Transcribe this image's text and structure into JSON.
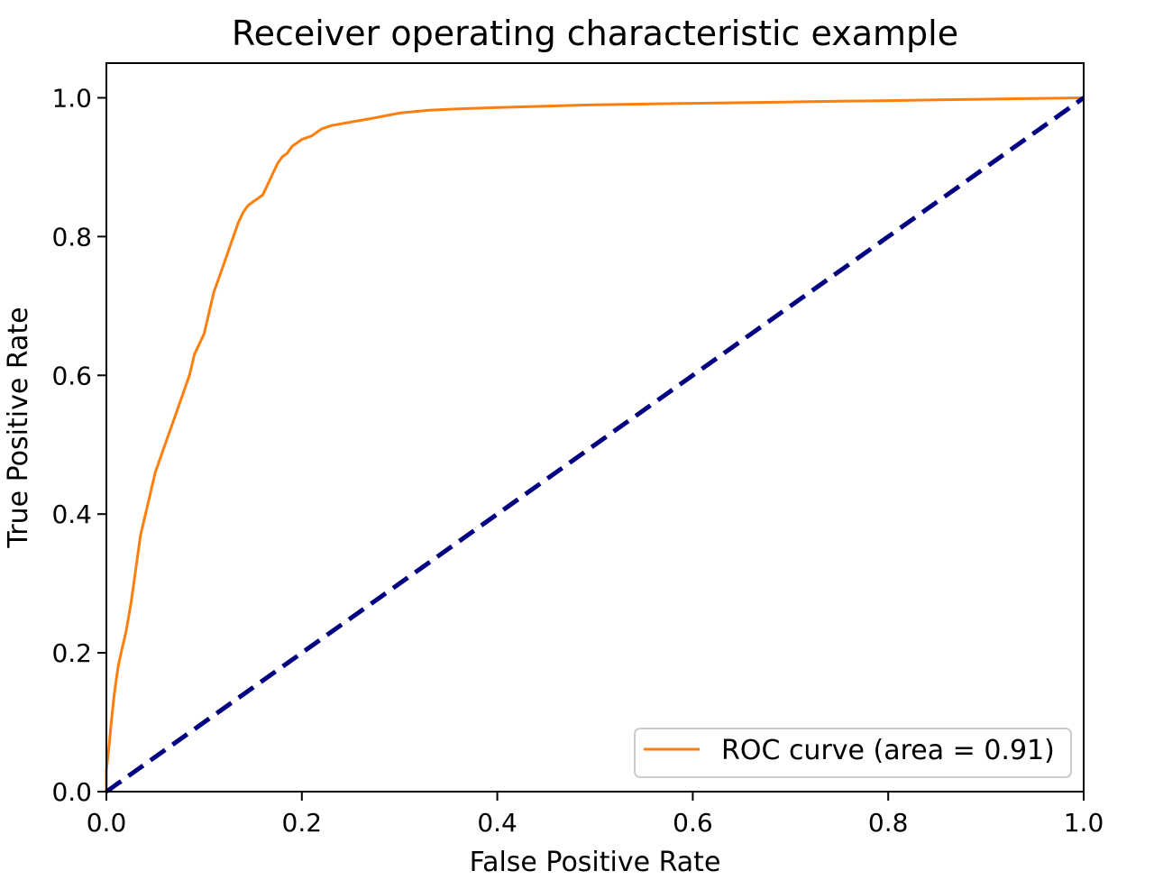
{
  "chart_data": {
    "type": "line",
    "title": "Receiver operating characteristic example",
    "xlabel": "False Positive Rate",
    "ylabel": "True Positive Rate",
    "xlim": [
      0.0,
      1.0
    ],
    "ylim": [
      0.0,
      1.05
    ],
    "xticks": [
      "0.0",
      "0.2",
      "0.4",
      "0.6",
      "0.8",
      "1.0"
    ],
    "yticks": [
      "0.0",
      "0.2",
      "0.4",
      "0.6",
      "0.8",
      "1.0"
    ],
    "grid": false,
    "legend_position": "lower-right",
    "series": [
      {
        "name": "ROC curve (area = 0.91)",
        "color": "#ff7f0e",
        "line_style": "solid",
        "x": [
          0.0,
          0.0,
          0.003,
          0.005,
          0.008,
          0.01,
          0.012,
          0.015,
          0.02,
          0.025,
          0.028,
          0.03,
          0.035,
          0.04,
          0.045,
          0.05,
          0.055,
          0.06,
          0.065,
          0.07,
          0.075,
          0.08,
          0.085,
          0.09,
          0.095,
          0.1,
          0.105,
          0.11,
          0.115,
          0.12,
          0.125,
          0.13,
          0.135,
          0.14,
          0.145,
          0.15,
          0.155,
          0.16,
          0.165,
          0.17,
          0.175,
          0.18,
          0.185,
          0.19,
          0.2,
          0.21,
          0.22,
          0.23,
          0.25,
          0.27,
          0.3,
          0.33,
          0.36,
          0.4,
          0.45,
          0.5,
          0.55,
          0.6,
          0.65,
          0.7,
          0.75,
          0.8,
          0.85,
          0.9,
          0.95,
          1.0
        ],
        "y": [
          0.0,
          0.03,
          0.07,
          0.1,
          0.14,
          0.16,
          0.18,
          0.2,
          0.23,
          0.27,
          0.3,
          0.32,
          0.37,
          0.4,
          0.43,
          0.46,
          0.48,
          0.5,
          0.52,
          0.54,
          0.56,
          0.58,
          0.6,
          0.63,
          0.645,
          0.66,
          0.69,
          0.72,
          0.74,
          0.76,
          0.78,
          0.8,
          0.82,
          0.835,
          0.845,
          0.85,
          0.855,
          0.86,
          0.875,
          0.89,
          0.905,
          0.915,
          0.92,
          0.93,
          0.94,
          0.945,
          0.955,
          0.96,
          0.965,
          0.97,
          0.978,
          0.982,
          0.984,
          0.986,
          0.988,
          0.99,
          0.991,
          0.992,
          0.993,
          0.994,
          0.995,
          0.996,
          0.997,
          0.998,
          0.999,
          1.0
        ]
      },
      {
        "name": "",
        "color": "#000080",
        "line_style": "dashed",
        "x": [
          0.0,
          1.0
        ],
        "y": [
          0.0,
          1.0
        ]
      }
    ],
    "legend": [
      {
        "label": "ROC curve (area = 0.91)",
        "color": "#ff7f0e"
      }
    ]
  }
}
